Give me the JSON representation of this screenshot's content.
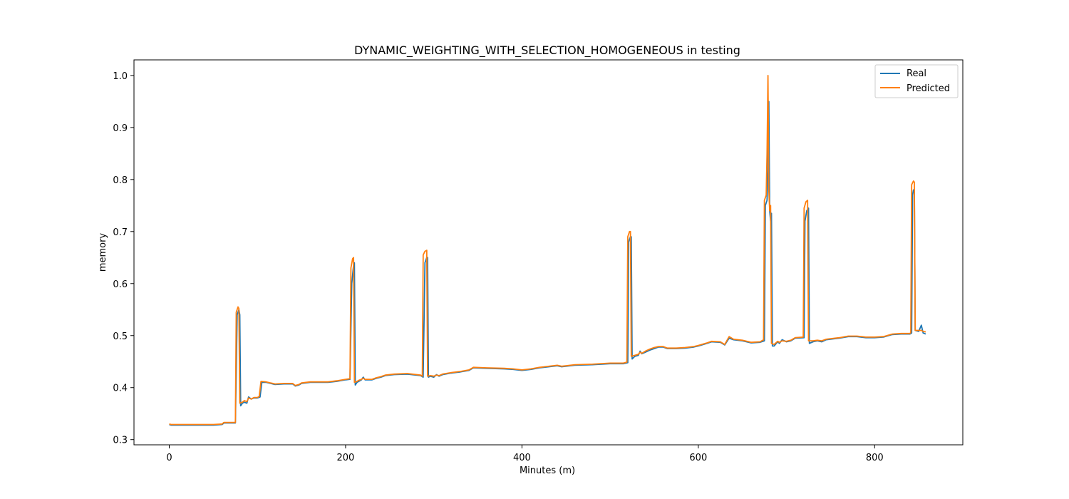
{
  "chart_data": {
    "type": "line",
    "title": "DYNAMIC_WEIGHTING_WITH_SELECTION_HOMOGENEOUS in testing",
    "xlabel": "Minutes (m)",
    "ylabel": "memory",
    "xlim": [
      -40,
      900
    ],
    "ylim": [
      0.29,
      1.03
    ],
    "xticks": [
      0,
      200,
      400,
      600,
      800
    ],
    "yticks": [
      0.3,
      0.4,
      0.5,
      0.6,
      0.7,
      0.8,
      0.9,
      1.0
    ],
    "xtick_labels": [
      "0",
      "200",
      "400",
      "600",
      "800"
    ],
    "ytick_labels": [
      "0.3",
      "0.4",
      "0.5",
      "0.6",
      "0.7",
      "0.8",
      "0.9",
      "1.0"
    ],
    "grid": false,
    "legend_position": "top-right",
    "series": [
      {
        "name": "Real",
        "color": "#1f77b4",
        "points": [
          [
            0,
            0.329
          ],
          [
            2,
            0.328
          ],
          [
            10,
            0.328
          ],
          [
            30,
            0.328
          ],
          [
            50,
            0.328
          ],
          [
            60,
            0.329
          ],
          [
            62,
            0.332
          ],
          [
            70,
            0.332
          ],
          [
            75,
            0.332
          ],
          [
            77,
            0.54
          ],
          [
            79,
            0.55
          ],
          [
            80,
            0.54
          ],
          [
            81,
            0.365
          ],
          [
            83,
            0.37
          ],
          [
            85,
            0.372
          ],
          [
            88,
            0.37
          ],
          [
            90,
            0.382
          ],
          [
            93,
            0.378
          ],
          [
            96,
            0.38
          ],
          [
            100,
            0.38
          ],
          [
            103,
            0.382
          ],
          [
            105,
            0.41
          ],
          [
            110,
            0.41
          ],
          [
            115,
            0.408
          ],
          [
            120,
            0.406
          ],
          [
            130,
            0.407
          ],
          [
            140,
            0.407
          ],
          [
            143,
            0.403
          ],
          [
            147,
            0.405
          ],
          [
            150,
            0.408
          ],
          [
            160,
            0.41
          ],
          [
            170,
            0.41
          ],
          [
            180,
            0.41
          ],
          [
            190,
            0.412
          ],
          [
            200,
            0.415
          ],
          [
            205,
            0.416
          ],
          [
            207,
            0.6
          ],
          [
            209,
            0.635
          ],
          [
            210,
            0.64
          ],
          [
            211,
            0.405
          ],
          [
            213,
            0.41
          ],
          [
            215,
            0.412
          ],
          [
            218,
            0.415
          ],
          [
            220,
            0.42
          ],
          [
            222,
            0.415
          ],
          [
            225,
            0.415
          ],
          [
            230,
            0.415
          ],
          [
            235,
            0.418
          ],
          [
            240,
            0.42
          ],
          [
            245,
            0.423
          ],
          [
            255,
            0.425
          ],
          [
            270,
            0.426
          ],
          [
            285,
            0.423
          ],
          [
            288,
            0.42
          ],
          [
            290,
            0.64
          ],
          [
            292,
            0.65
          ],
          [
            293,
            0.65
          ],
          [
            294,
            0.42
          ],
          [
            296,
            0.422
          ],
          [
            300,
            0.42
          ],
          [
            303,
            0.425
          ],
          [
            306,
            0.422
          ],
          [
            310,
            0.425
          ],
          [
            320,
            0.428
          ],
          [
            330,
            0.43
          ],
          [
            340,
            0.433
          ],
          [
            345,
            0.438
          ],
          [
            360,
            0.437
          ],
          [
            380,
            0.436
          ],
          [
            390,
            0.435
          ],
          [
            400,
            0.433
          ],
          [
            410,
            0.435
          ],
          [
            420,
            0.438
          ],
          [
            440,
            0.442
          ],
          [
            445,
            0.44
          ],
          [
            460,
            0.443
          ],
          [
            480,
            0.444
          ],
          [
            500,
            0.446
          ],
          [
            515,
            0.446
          ],
          [
            520,
            0.448
          ],
          [
            521,
            0.68
          ],
          [
            523,
            0.69
          ],
          [
            524,
            0.69
          ],
          [
            525,
            0.455
          ],
          [
            528,
            0.46
          ],
          [
            532,
            0.462
          ],
          [
            534,
            0.47
          ],
          [
            536,
            0.465
          ],
          [
            540,
            0.468
          ],
          [
            545,
            0.472
          ],
          [
            550,
            0.475
          ],
          [
            555,
            0.478
          ],
          [
            560,
            0.478
          ],
          [
            565,
            0.475
          ],
          [
            575,
            0.475
          ],
          [
            585,
            0.476
          ],
          [
            595,
            0.478
          ],
          [
            600,
            0.48
          ],
          [
            610,
            0.485
          ],
          [
            615,
            0.488
          ],
          [
            625,
            0.487
          ],
          [
            630,
            0.482
          ],
          [
            635,
            0.495
          ],
          [
            640,
            0.492
          ],
          [
            650,
            0.49
          ],
          [
            660,
            0.486
          ],
          [
            670,
            0.487
          ],
          [
            675,
            0.49
          ],
          [
            676,
            0.75
          ],
          [
            678,
            0.76
          ],
          [
            679,
            0.82
          ],
          [
            680,
            0.95
          ],
          [
            681,
            0.74
          ],
          [
            682,
            0.72
          ],
          [
            683,
            0.735
          ],
          [
            684,
            0.48
          ],
          [
            686,
            0.48
          ],
          [
            690,
            0.488
          ],
          [
            692,
            0.485
          ],
          [
            695,
            0.492
          ],
          [
            700,
            0.488
          ],
          [
            705,
            0.49
          ],
          [
            710,
            0.495
          ],
          [
            720,
            0.496
          ],
          [
            721,
            0.72
          ],
          [
            723,
            0.74
          ],
          [
            725,
            0.745
          ],
          [
            726,
            0.485
          ],
          [
            730,
            0.488
          ],
          [
            735,
            0.49
          ],
          [
            740,
            0.488
          ],
          [
            745,
            0.492
          ],
          [
            750,
            0.493
          ],
          [
            760,
            0.495
          ],
          [
            770,
            0.498
          ],
          [
            780,
            0.498
          ],
          [
            790,
            0.496
          ],
          [
            800,
            0.496
          ],
          [
            810,
            0.497
          ],
          [
            820,
            0.502
          ],
          [
            830,
            0.503
          ],
          [
            840,
            0.503
          ],
          [
            842,
            0.505
          ],
          [
            843,
            0.77
          ],
          [
            844,
            0.78
          ],
          [
            845,
            0.775
          ],
          [
            846,
            0.51
          ],
          [
            850,
            0.508
          ],
          [
            853,
            0.52
          ],
          [
            855,
            0.505
          ],
          [
            858,
            0.503
          ]
        ]
      },
      {
        "name": "Predicted",
        "color": "#ff7f0e",
        "points": [
          [
            0,
            0.33
          ],
          [
            2,
            0.329
          ],
          [
            10,
            0.329
          ],
          [
            30,
            0.329
          ],
          [
            50,
            0.329
          ],
          [
            60,
            0.33
          ],
          [
            62,
            0.333
          ],
          [
            70,
            0.333
          ],
          [
            75,
            0.333
          ],
          [
            76,
            0.545
          ],
          [
            78,
            0.555
          ],
          [
            79,
            0.552
          ],
          [
            80,
            0.37
          ],
          [
            83,
            0.372
          ],
          [
            85,
            0.375
          ],
          [
            88,
            0.373
          ],
          [
            90,
            0.38
          ],
          [
            93,
            0.378
          ],
          [
            96,
            0.381
          ],
          [
            100,
            0.381
          ],
          [
            102,
            0.383
          ],
          [
            104,
            0.412
          ],
          [
            110,
            0.411
          ],
          [
            115,
            0.409
          ],
          [
            120,
            0.407
          ],
          [
            130,
            0.408
          ],
          [
            140,
            0.408
          ],
          [
            143,
            0.404
          ],
          [
            147,
            0.406
          ],
          [
            150,
            0.409
          ],
          [
            160,
            0.411
          ],
          [
            170,
            0.411
          ],
          [
            180,
            0.411
          ],
          [
            190,
            0.413
          ],
          [
            200,
            0.416
          ],
          [
            205,
            0.417
          ],
          [
            206,
            0.63
          ],
          [
            208,
            0.648
          ],
          [
            209,
            0.65
          ],
          [
            210,
            0.41
          ],
          [
            213,
            0.412
          ],
          [
            215,
            0.414
          ],
          [
            218,
            0.416
          ],
          [
            220,
            0.418
          ],
          [
            222,
            0.416
          ],
          [
            225,
            0.416
          ],
          [
            230,
            0.416
          ],
          [
            235,
            0.419
          ],
          [
            240,
            0.421
          ],
          [
            245,
            0.424
          ],
          [
            255,
            0.426
          ],
          [
            270,
            0.427
          ],
          [
            285,
            0.424
          ],
          [
            287,
            0.422
          ],
          [
            288,
            0.655
          ],
          [
            290,
            0.662
          ],
          [
            292,
            0.664
          ],
          [
            293,
            0.422
          ],
          [
            296,
            0.423
          ],
          [
            300,
            0.422
          ],
          [
            303,
            0.424
          ],
          [
            306,
            0.423
          ],
          [
            310,
            0.426
          ],
          [
            320,
            0.429
          ],
          [
            330,
            0.431
          ],
          [
            340,
            0.434
          ],
          [
            345,
            0.439
          ],
          [
            360,
            0.438
          ],
          [
            380,
            0.437
          ],
          [
            390,
            0.436
          ],
          [
            400,
            0.434
          ],
          [
            410,
            0.436
          ],
          [
            420,
            0.439
          ],
          [
            440,
            0.443
          ],
          [
            445,
            0.441
          ],
          [
            460,
            0.444
          ],
          [
            480,
            0.445
          ],
          [
            500,
            0.447
          ],
          [
            515,
            0.447
          ],
          [
            519,
            0.449
          ],
          [
            520,
            0.69
          ],
          [
            522,
            0.7
          ],
          [
            523,
            0.7
          ],
          [
            524,
            0.46
          ],
          [
            528,
            0.462
          ],
          [
            532,
            0.464
          ],
          [
            534,
            0.468
          ],
          [
            536,
            0.466
          ],
          [
            540,
            0.47
          ],
          [
            545,
            0.474
          ],
          [
            550,
            0.477
          ],
          [
            555,
            0.479
          ],
          [
            560,
            0.479
          ],
          [
            565,
            0.476
          ],
          [
            575,
            0.476
          ],
          [
            585,
            0.477
          ],
          [
            595,
            0.479
          ],
          [
            600,
            0.481
          ],
          [
            610,
            0.486
          ],
          [
            615,
            0.489
          ],
          [
            625,
            0.488
          ],
          [
            630,
            0.483
          ],
          [
            635,
            0.498
          ],
          [
            640,
            0.493
          ],
          [
            650,
            0.491
          ],
          [
            660,
            0.487
          ],
          [
            670,
            0.488
          ],
          [
            674,
            0.492
          ],
          [
            675,
            0.76
          ],
          [
            677,
            0.77
          ],
          [
            678,
            0.85
          ],
          [
            679,
            1.0
          ],
          [
            680,
            0.78
          ],
          [
            681,
            0.74
          ],
          [
            682,
            0.75
          ],
          [
            683,
            0.485
          ],
          [
            686,
            0.483
          ],
          [
            690,
            0.489
          ],
          [
            692,
            0.487
          ],
          [
            695,
            0.49
          ],
          [
            700,
            0.489
          ],
          [
            705,
            0.491
          ],
          [
            710,
            0.496
          ],
          [
            719,
            0.497
          ],
          [
            720,
            0.745
          ],
          [
            722,
            0.757
          ],
          [
            724,
            0.76
          ],
          [
            725,
            0.49
          ],
          [
            730,
            0.49
          ],
          [
            735,
            0.491
          ],
          [
            740,
            0.49
          ],
          [
            745,
            0.493
          ],
          [
            750,
            0.494
          ],
          [
            760,
            0.496
          ],
          [
            770,
            0.499
          ],
          [
            780,
            0.499
          ],
          [
            790,
            0.497
          ],
          [
            800,
            0.497
          ],
          [
            810,
            0.498
          ],
          [
            820,
            0.503
          ],
          [
            830,
            0.504
          ],
          [
            840,
            0.504
          ],
          [
            841,
            0.506
          ],
          [
            842,
            0.79
          ],
          [
            844,
            0.797
          ],
          [
            845,
            0.795
          ],
          [
            846,
            0.51
          ],
          [
            850,
            0.51
          ],
          [
            853,
            0.51
          ],
          [
            855,
            0.508
          ],
          [
            858,
            0.507
          ]
        ]
      }
    ]
  }
}
